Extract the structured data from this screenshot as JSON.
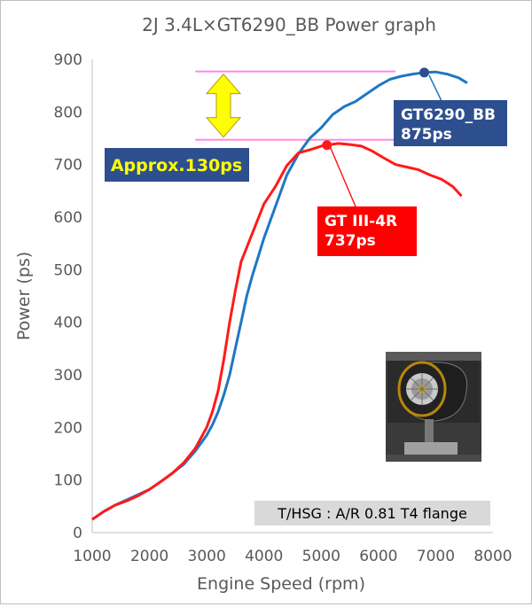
{
  "chart_data": {
    "type": "line",
    "title": "2J 3.4L×GT6290_BB Power graph",
    "xlabel": "Engine Speed (rpm)",
    "ylabel": "Power (ps)",
    "xlim": [
      1000,
      8000
    ],
    "ylim": [
      0,
      900
    ],
    "x_ticks": [
      "1000",
      "2000",
      "3000",
      "4000",
      "5000",
      "6000",
      "7000",
      "8000"
    ],
    "y_ticks": [
      "0",
      "100",
      "200",
      "300",
      "400",
      "500",
      "600",
      "700",
      "800",
      "900"
    ],
    "grid": false,
    "series": [
      {
        "name": "GT6290_BB",
        "color": "#1f77c4",
        "points": [
          [
            1000,
            25
          ],
          [
            1200,
            40
          ],
          [
            1400,
            52
          ],
          [
            1600,
            62
          ],
          [
            1800,
            72
          ],
          [
            2000,
            82
          ],
          [
            2200,
            97
          ],
          [
            2400,
            113
          ],
          [
            2600,
            130
          ],
          [
            2800,
            155
          ],
          [
            3000,
            185
          ],
          [
            3100,
            205
          ],
          [
            3200,
            230
          ],
          [
            3300,
            262
          ],
          [
            3400,
            300
          ],
          [
            3500,
            350
          ],
          [
            3600,
            400
          ],
          [
            3700,
            450
          ],
          [
            3800,
            490
          ],
          [
            3900,
            525
          ],
          [
            4000,
            560
          ],
          [
            4200,
            620
          ],
          [
            4400,
            680
          ],
          [
            4600,
            720
          ],
          [
            4800,
            750
          ],
          [
            5000,
            770
          ],
          [
            5200,
            795
          ],
          [
            5400,
            810
          ],
          [
            5600,
            820
          ],
          [
            5800,
            835
          ],
          [
            6000,
            850
          ],
          [
            6200,
            862
          ],
          [
            6400,
            868
          ],
          [
            6600,
            872
          ],
          [
            6800,
            875
          ],
          [
            7000,
            876
          ],
          [
            7200,
            872
          ],
          [
            7400,
            865
          ],
          [
            7550,
            855
          ]
        ]
      },
      {
        "name": "GT III-4R",
        "color": "#ff1a1a",
        "points": [
          [
            1000,
            25
          ],
          [
            1200,
            40
          ],
          [
            1400,
            52
          ],
          [
            1600,
            60
          ],
          [
            1800,
            70
          ],
          [
            2000,
            82
          ],
          [
            2200,
            97
          ],
          [
            2400,
            113
          ],
          [
            2600,
            133
          ],
          [
            2800,
            160
          ],
          [
            3000,
            200
          ],
          [
            3100,
            230
          ],
          [
            3200,
            270
          ],
          [
            3300,
            330
          ],
          [
            3400,
            400
          ],
          [
            3500,
            460
          ],
          [
            3600,
            515
          ],
          [
            3800,
            570
          ],
          [
            4000,
            625
          ],
          [
            4200,
            658
          ],
          [
            4400,
            698
          ],
          [
            4600,
            722
          ],
          [
            4800,
            728
          ],
          [
            5000,
            735
          ],
          [
            5100,
            737
          ],
          [
            5300,
            740
          ],
          [
            5500,
            738
          ],
          [
            5700,
            735
          ],
          [
            5900,
            725
          ],
          [
            6100,
            712
          ],
          [
            6300,
            700
          ],
          [
            6500,
            695
          ],
          [
            6700,
            690
          ],
          [
            6900,
            680
          ],
          [
            7100,
            672
          ],
          [
            7300,
            658
          ],
          [
            7450,
            640
          ]
        ]
      }
    ],
    "peaks": [
      {
        "series": "GT6290_BB",
        "x": 6800,
        "y": 875,
        "label": "GT6290_BB",
        "value_label": "875ps",
        "box_color": "#2e4f8f"
      },
      {
        "series": "GT III-4R",
        "x": 5100,
        "y": 737,
        "label": "GT III-4R",
        "value_label": "737ps",
        "box_color": "#ff0000"
      }
    ],
    "difference": {
      "text": "Approx.130ps",
      "upper": 877,
      "lower": 747,
      "line_x_range": [
        2800,
        6300
      ],
      "line_color": "#ff88ee",
      "arrow_color": "#ffff00",
      "box_color": "#2e4f8f",
      "text_color": "#ffff00"
    },
    "note": "T/HSG : A/R 0.81 T4 flange",
    "note_box_color": "#d9d9d9",
    "photo": "turbocharger-photo"
  }
}
